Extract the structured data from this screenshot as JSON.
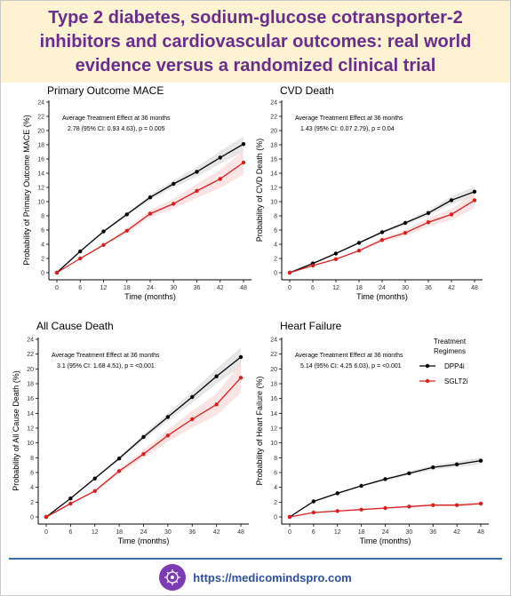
{
  "header": {
    "title": "Type 2 diabetes, sodium-glucose cotransporter-2 inhibitors and cardiovascular outcomes: real world evidence versus a randomized clinical trial"
  },
  "footer": {
    "url": "https://medicomindspro.com",
    "logo_icon": "brain-circuit-icon"
  },
  "colors": {
    "DPP4i": "#000000",
    "SGLT2i": "#d62020",
    "band_SGLT2i": "#f9d9d9",
    "band_DPP4i": "#dcdcdc",
    "title_bg": "#fdf2d2",
    "title_text": "#6a2d8c"
  },
  "legend": {
    "title_line1": "Treatment",
    "title_line2": "Regimens",
    "entries": [
      "DPP4i",
      "SGLT2i"
    ]
  },
  "chart_data": [
    {
      "type": "line",
      "title": "Primary Outcome MACE",
      "xlabel": "Time (months)",
      "ylabel": "Probability of Primary Outcome MACE (%)",
      "x": [
        0,
        6,
        12,
        18,
        24,
        30,
        36,
        42,
        48
      ],
      "ylim": [
        0,
        24
      ],
      "yticks": [
        0,
        2,
        4,
        6,
        8,
        10,
        12,
        14,
        16,
        18,
        20,
        22,
        24
      ],
      "annotation_line1": "Average Treatment Effect at 36 months",
      "annotation_line2": "2.78 (95% CI: 0.93 4.63), p = 0.005",
      "series": [
        {
          "name": "DPP4i",
          "values": [
            0,
            3.0,
            5.8,
            8.2,
            10.6,
            12.5,
            14.2,
            16.2,
            18.1
          ]
        },
        {
          "name": "SGLT2i",
          "values": [
            0,
            2.0,
            3.9,
            5.9,
            8.3,
            9.7,
            11.5,
            13.2,
            15.5
          ]
        }
      ]
    },
    {
      "type": "line",
      "title": "CVD Death",
      "xlabel": "Time (months)",
      "ylabel": "Probability of CVD Death (%)",
      "x": [
        0,
        6,
        12,
        18,
        24,
        30,
        36,
        42,
        48
      ],
      "ylim": [
        0,
        24
      ],
      "yticks": [
        0,
        2,
        4,
        6,
        8,
        10,
        12,
        14,
        16,
        18,
        20,
        22,
        24
      ],
      "annotation_line1": "Average Treatment Effect at 36 months",
      "annotation_line2": "1.43 (95% CI: 0.07 2.79), p = 0.04",
      "series": [
        {
          "name": "DPP4i",
          "values": [
            0,
            1.3,
            2.7,
            4.2,
            5.7,
            7.0,
            8.4,
            10.2,
            11.4
          ]
        },
        {
          "name": "SGLT2i",
          "values": [
            0,
            1.0,
            1.9,
            3.1,
            4.6,
            5.6,
            7.1,
            8.2,
            10.2
          ]
        }
      ]
    },
    {
      "type": "line",
      "title": "All Cause Death",
      "xlabel": "Time (months)",
      "ylabel": "Probability of All Cause Death (%)",
      "x": [
        0,
        6,
        12,
        18,
        24,
        30,
        36,
        42,
        48
      ],
      "ylim": [
        0,
        24
      ],
      "yticks": [
        0,
        2,
        4,
        6,
        8,
        10,
        12,
        14,
        16,
        18,
        20,
        22,
        24
      ],
      "annotation_line1": "Average Treatment Effect at 36 months",
      "annotation_line2": "3.1 (95% CI: 1.68 4.51), p = <0.001",
      "series": [
        {
          "name": "DPP4i",
          "values": [
            0,
            2.5,
            5.2,
            7.9,
            10.8,
            13.5,
            16.2,
            19.0,
            21.6
          ]
        },
        {
          "name": "SGLT2i",
          "values": [
            0,
            1.8,
            3.5,
            6.2,
            8.5,
            11.0,
            13.2,
            15.2,
            18.8
          ]
        }
      ]
    },
    {
      "type": "line",
      "title": "Heart Failure",
      "xlabel": "Time (months)",
      "ylabel": "Probability of Heart Failure (%)",
      "x": [
        0,
        6,
        12,
        18,
        24,
        30,
        36,
        42,
        48
      ],
      "ylim": [
        0,
        24
      ],
      "yticks": [
        0,
        2,
        4,
        6,
        8,
        10,
        12,
        14,
        16,
        18,
        20,
        22,
        24
      ],
      "annotation_line1": "Average Treatment Effect at 36 months",
      "annotation_line2": "5.14 (95% CI: 4.25 6.03), p = <0.001",
      "legend": "top-right",
      "series": [
        {
          "name": "DPP4i",
          "values": [
            0,
            2.1,
            3.2,
            4.2,
            5.1,
            5.9,
            6.7,
            7.1,
            7.6
          ]
        },
        {
          "name": "SGLT2i",
          "values": [
            0,
            0.6,
            0.8,
            1.0,
            1.2,
            1.4,
            1.6,
            1.6,
            1.8
          ]
        }
      ]
    }
  ]
}
